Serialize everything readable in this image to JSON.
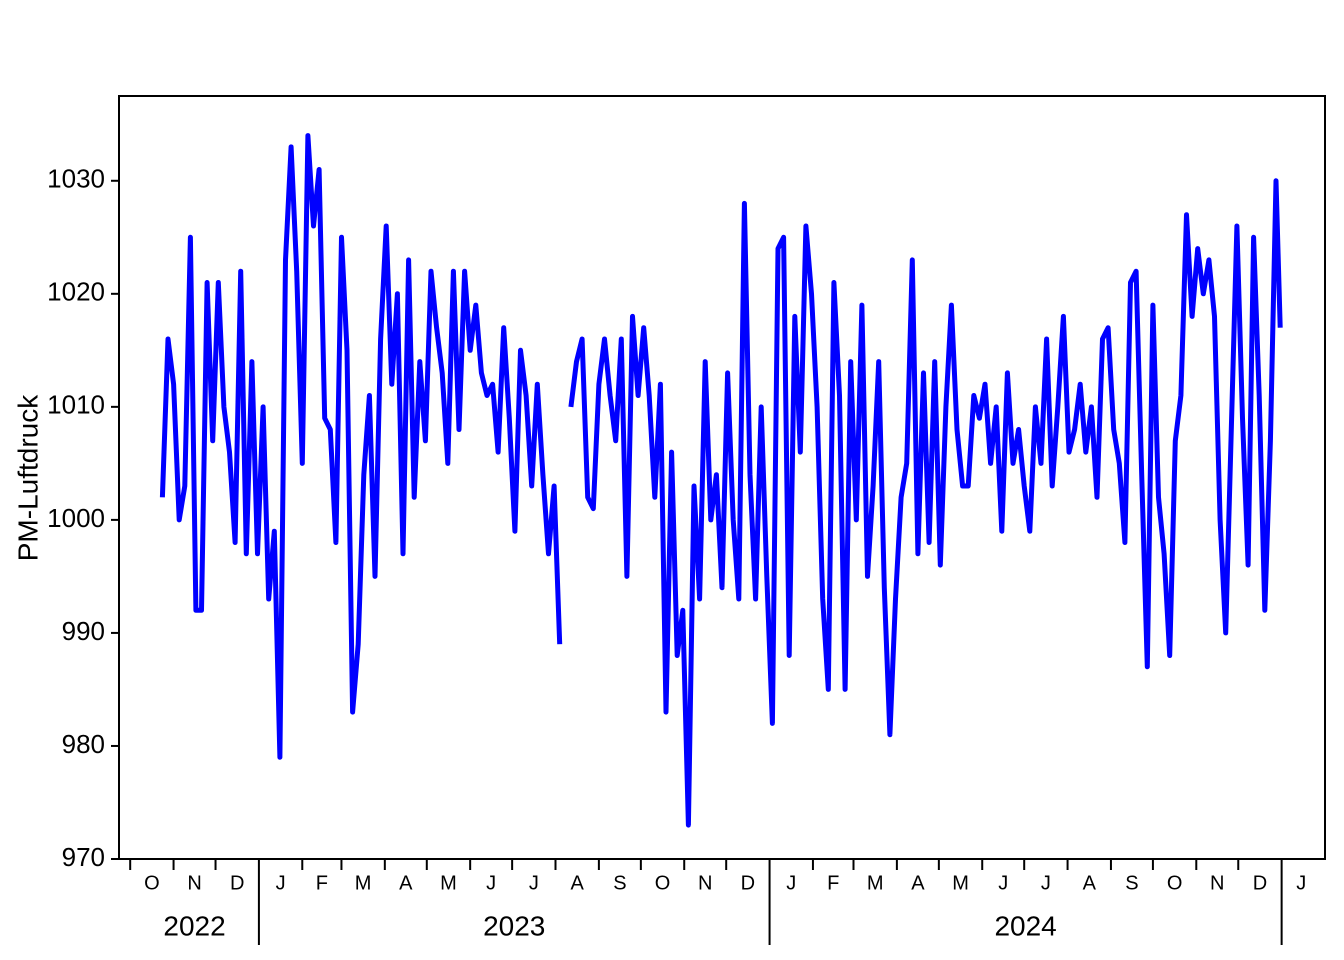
{
  "chart_data": {
    "type": "line",
    "y_label": "PM-Luftdruck",
    "color": "#0000ff",
    "ylim": [
      970,
      1037.5
    ],
    "yticks": [
      970,
      980,
      990,
      1000,
      1010,
      1020,
      1030
    ],
    "xlim": [
      "2022-09-23",
      "2025-02-01"
    ],
    "xticks": [
      {
        "value": "2022-10-01",
        "label": "O"
      },
      {
        "value": "2022-11-01",
        "label": "N"
      },
      {
        "value": "2022-12-01",
        "label": "D"
      },
      {
        "value": "2023-01-01",
        "label": "J"
      },
      {
        "value": "2023-02-01",
        "label": "F"
      },
      {
        "value": "2023-03-01",
        "label": "M"
      },
      {
        "value": "2023-04-01",
        "label": "A"
      },
      {
        "value": "2023-05-01",
        "label": "M"
      },
      {
        "value": "2023-06-01",
        "label": "J"
      },
      {
        "value": "2023-07-01",
        "label": "J"
      },
      {
        "value": "2023-08-01",
        "label": "A"
      },
      {
        "value": "2023-09-01",
        "label": "S"
      },
      {
        "value": "2023-10-01",
        "label": "O"
      },
      {
        "value": "2023-11-01",
        "label": "N"
      },
      {
        "value": "2023-12-01",
        "label": "D"
      },
      {
        "value": "2024-01-01",
        "label": "J"
      },
      {
        "value": "2024-02-01",
        "label": "F"
      },
      {
        "value": "2024-03-01",
        "label": "M"
      },
      {
        "value": "2024-04-01",
        "label": "A"
      },
      {
        "value": "2024-05-01",
        "label": "M"
      },
      {
        "value": "2024-06-01",
        "label": "J"
      },
      {
        "value": "2024-07-01",
        "label": "J"
      },
      {
        "value": "2024-08-01",
        "label": "A"
      },
      {
        "value": "2024-09-01",
        "label": "S"
      },
      {
        "value": "2024-10-01",
        "label": "O"
      },
      {
        "value": "2024-11-01",
        "label": "N"
      },
      {
        "value": "2024-12-01",
        "label": "D"
      },
      {
        "value": "2025-01-01",
        "label": "J"
      }
    ],
    "year_labels": [
      "2022",
      "2023",
      "2024"
    ],
    "x": [
      "2022-10-24",
      "2022-10-28",
      "2022-11-01",
      "2022-11-05",
      "2022-11-09",
      "2022-11-13",
      "2022-11-17",
      "2022-11-21",
      "2022-11-25",
      "2022-11-29",
      "2022-12-03",
      "2022-12-07",
      "2022-12-11",
      "2022-12-15",
      "2022-12-19",
      "2022-12-23",
      "2022-12-27",
      "2022-12-31",
      "2023-01-04",
      "2023-01-08",
      "2023-01-12",
      "2023-01-16",
      "2023-01-20",
      "2023-01-24",
      "2023-01-28",
      "2023-02-01",
      "2023-02-05",
      "2023-02-09",
      "2023-02-13",
      "2023-02-17",
      "2023-02-21",
      "2023-02-25",
      "2023-03-01",
      "2023-03-05",
      "2023-03-09",
      "2023-03-13",
      "2023-03-17",
      "2023-03-21",
      "2023-03-25",
      "2023-03-29",
      "2023-04-02",
      "2023-04-06",
      "2023-04-10",
      "2023-04-14",
      "2023-04-18",
      "2023-04-22",
      "2023-04-26",
      "2023-04-30",
      "2023-05-04",
      "2023-05-08",
      "2023-05-12",
      "2023-05-16",
      "2023-05-20",
      "2023-05-24",
      "2023-05-28",
      "2023-06-01",
      "2023-06-05",
      "2023-06-09",
      "2023-06-13",
      "2023-06-17",
      "2023-06-21",
      "2023-06-25",
      "2023-06-29",
      "2023-07-03",
      "2023-07-07",
      "2023-07-11",
      "2023-07-15",
      "2023-07-19",
      "2023-07-23",
      "2023-07-27",
      "2023-07-31",
      "2023-08-04",
      "2023-08-08",
      "2023-08-12",
      "2023-08-16",
      "2023-08-20",
      "2023-08-24",
      "2023-08-28",
      "2023-09-01",
      "2023-09-05",
      "2023-09-09",
      "2023-09-13",
      "2023-09-17",
      "2023-09-21",
      "2023-09-25",
      "2023-09-29",
      "2023-10-03",
      "2023-10-07",
      "2023-10-11",
      "2023-10-15",
      "2023-10-19",
      "2023-10-23",
      "2023-10-27",
      "2023-10-31",
      "2023-11-04",
      "2023-11-08",
      "2023-11-12",
      "2023-11-16",
      "2023-11-20",
      "2023-11-24",
      "2023-11-28",
      "2023-12-02",
      "2023-12-06",
      "2023-12-10",
      "2023-12-14",
      "2023-12-18",
      "2023-12-22",
      "2023-12-26",
      "2023-12-30",
      "2024-01-03",
      "2024-01-07",
      "2024-01-11",
      "2024-01-15",
      "2024-01-19",
      "2024-01-23",
      "2024-01-27",
      "2024-01-31",
      "2024-02-04",
      "2024-02-08",
      "2024-02-12",
      "2024-02-16",
      "2024-02-20",
      "2024-02-24",
      "2024-02-28",
      "2024-03-03",
      "2024-03-07",
      "2024-03-11",
      "2024-03-15",
      "2024-03-19",
      "2024-03-23",
      "2024-03-27",
      "2024-03-31",
      "2024-04-04",
      "2024-04-08",
      "2024-04-12",
      "2024-04-16",
      "2024-04-20",
      "2024-04-24",
      "2024-04-28",
      "2024-05-02",
      "2024-05-06",
      "2024-05-10",
      "2024-05-14",
      "2024-05-18",
      "2024-05-22",
      "2024-05-26",
      "2024-05-30",
      "2024-06-03",
      "2024-06-07",
      "2024-06-11",
      "2024-06-15",
      "2024-06-19",
      "2024-06-23",
      "2024-06-27",
      "2024-07-01",
      "2024-07-05",
      "2024-07-09",
      "2024-07-13",
      "2024-07-17",
      "2024-07-21",
      "2024-07-25",
      "2024-07-29",
      "2024-08-02",
      "2024-08-06",
      "2024-08-10",
      "2024-08-14",
      "2024-08-18",
      "2024-08-22",
      "2024-08-26",
      "2024-08-30",
      "2024-09-03",
      "2024-09-07",
      "2024-09-11",
      "2024-09-15",
      "2024-09-19",
      "2024-09-23",
      "2024-09-27",
      "2024-10-01",
      "2024-10-05",
      "2024-10-09",
      "2024-10-13",
      "2024-10-17",
      "2024-10-21",
      "2024-10-25",
      "2024-10-29",
      "2024-11-02",
      "2024-11-06",
      "2024-11-10",
      "2024-11-14",
      "2024-11-18",
      "2024-11-22",
      "2024-11-26",
      "2024-11-30",
      "2024-12-04",
      "2024-12-08",
      "2024-12-12",
      "2024-12-16",
      "2024-12-20",
      "2024-12-24",
      "2024-12-28",
      "2024-12-31"
    ],
    "values": [
      1002,
      1016,
      1012,
      1000,
      1003,
      1025,
      992,
      992,
      1021,
      1007,
      1021,
      1010,
      1006,
      998,
      1022,
      997,
      1014,
      997,
      1010,
      993,
      999,
      979,
      1023,
      1033,
      1022,
      1005,
      1034,
      1026,
      1031,
      1009,
      1008,
      998,
      1025,
      1015,
      983,
      989,
      1004,
      1011,
      995,
      1016,
      1026,
      1012,
      1020,
      997,
      1023,
      1002,
      1014,
      1007,
      1022,
      1017,
      1013,
      1005,
      1022,
      1008,
      1022,
      1015,
      1019,
      1013,
      1011,
      1012,
      1006,
      1017,
      1009,
      999,
      1015,
      1011,
      1003,
      1012,
      1004,
      997,
      1003,
      989,
      null,
      1010,
      1014,
      1016,
      1002,
      1001,
      1012,
      1016,
      1011,
      1007,
      1016,
      995,
      1018,
      1011,
      1017,
      1011,
      1002,
      1012,
      983,
      1006,
      988,
      992,
      973,
      1003,
      993,
      1014,
      1000,
      1004,
      994,
      1013,
      1000,
      993,
      1028,
      1004,
      993,
      1010,
      995,
      982,
      1024,
      1025,
      988,
      1018,
      1006,
      1026,
      1020,
      1010,
      993,
      985,
      1021,
      1011,
      985,
      1014,
      1000,
      1019,
      995,
      1003,
      1014,
      994,
      981,
      993,
      1002,
      1005,
      1023,
      997,
      1013,
      998,
      1014,
      996,
      1010,
      1019,
      1008,
      1003,
      1003,
      1011,
      1009,
      1012,
      1005,
      1010,
      999,
      1013,
      1005,
      1008,
      1003,
      999,
      1010,
      1005,
      1016,
      1003,
      1010,
      1018,
      1006,
      1008,
      1012,
      1006,
      1010,
      1002,
      1016,
      1017,
      1008,
      1005,
      998,
      1021,
      1022,
      1004,
      987,
      1019,
      1002,
      997,
      988,
      1007,
      1011,
      1027,
      1018,
      1024,
      1020,
      1023,
      1018,
      1000,
      990,
      1008,
      1026,
      1009,
      996,
      1025,
      1011,
      992,
      1007,
      1030,
      1017
    ]
  }
}
